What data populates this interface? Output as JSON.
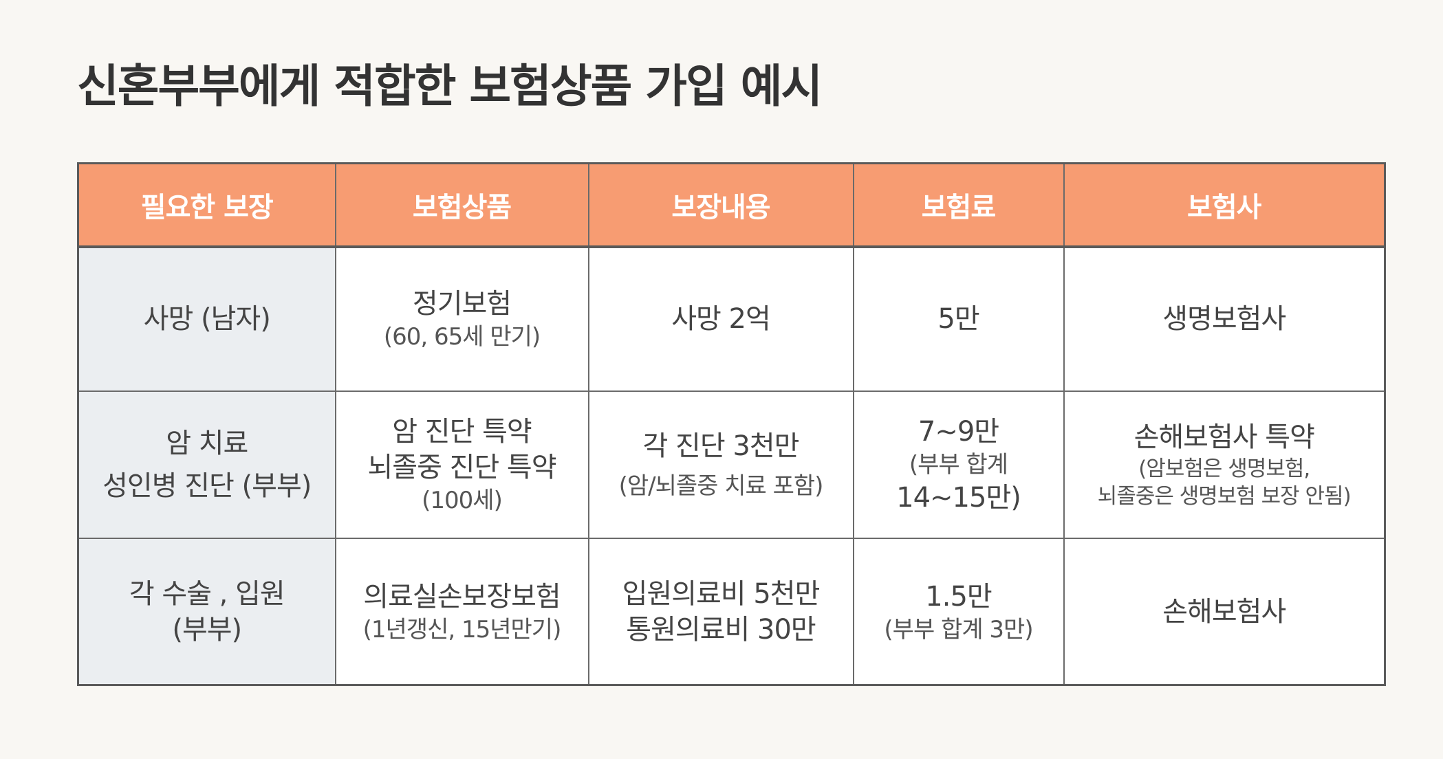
{
  "title": "신혼부부에게  적합한 보험상품 가입 예시",
  "table": {
    "headers": [
      "필요한 보장",
      "보험상품",
      "보장내용",
      "보험료",
      "보험사"
    ],
    "rows": [
      {
        "need": [
          "사망 (남자)"
        ],
        "product": [
          "정기보험",
          "(60, 65세 만기)"
        ],
        "coverage": [
          "사망 2억"
        ],
        "premium": [
          "5만"
        ],
        "insurer": [
          "생명보험사"
        ]
      },
      {
        "need": [
          "암 치료",
          "성인병 진단 (부부)"
        ],
        "product": [
          "암 진단 특약",
          "뇌졸중 진단 특약",
          "(100세)"
        ],
        "coverage": [
          "각 진단 3천만",
          "(암/뇌졸중 치료 포함)"
        ],
        "premium": [
          "7~9만",
          "(부부 합계",
          "14~15만)"
        ],
        "insurer": [
          "손해보험사 특약",
          "(암보험은 생명보험,",
          "뇌졸중은 생명보험 보장 안됨)"
        ]
      },
      {
        "need": [
          "각 수술 , 입원",
          "(부부)"
        ],
        "product": [
          "의료실손보장보험",
          "(1년갱신, 15년만기)"
        ],
        "coverage": [
          "입원의료비 5천만",
          "통원의료비 30만"
        ],
        "premium": [
          "1.5만",
          "(부부 합계 3만)"
        ],
        "insurer": [
          "손해보험사"
        ]
      }
    ]
  }
}
